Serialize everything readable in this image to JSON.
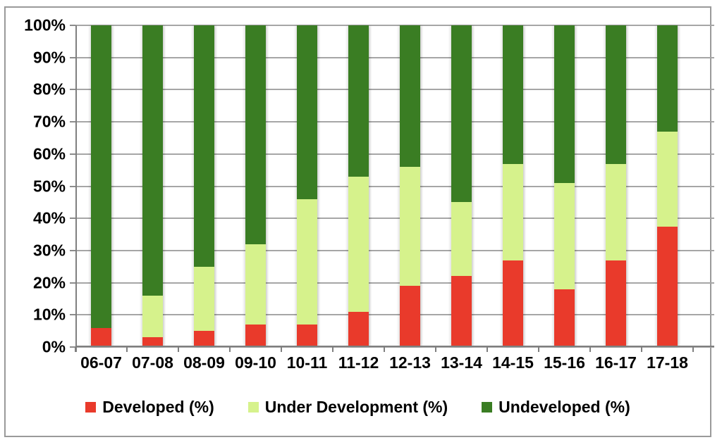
{
  "chart_data": {
    "type": "bar",
    "subtype": "stacked-100-percent",
    "title": "",
    "xlabel": "",
    "ylabel": "",
    "grid": true,
    "legend_position": "bottom",
    "categories": [
      "06-07",
      "07-08",
      "08-09",
      "09-10",
      "10-11",
      "11-12",
      "12-13",
      "13-14",
      "14-15",
      "15-16",
      "16-17",
      "17-18"
    ],
    "series": [
      {
        "name": "Developed (%)",
        "color": "#E93A2B",
        "values": [
          6,
          3,
          5,
          7,
          7,
          11,
          19,
          22,
          27,
          18,
          27,
          37.5
        ]
      },
      {
        "name": "Under Development (%)",
        "color": "#D6F28C",
        "values": [
          0,
          13,
          20,
          25,
          39,
          42,
          37,
          23,
          30,
          33,
          30,
          29.5
        ]
      },
      {
        "name": "Undeveloped (%)",
        "color": "#3A7D23",
        "values": [
          94,
          84,
          75,
          68,
          54,
          47,
          44,
          55,
          43,
          49,
          43,
          33
        ]
      }
    ],
    "y_axis": {
      "min": 0,
      "max": 100,
      "step": 10,
      "tick_format": "{v}%",
      "tick_labels": [
        "0%",
        "10%",
        "20%",
        "30%",
        "40%",
        "50%",
        "60%",
        "70%",
        "80%",
        "90%",
        "100%"
      ]
    }
  },
  "colors": {
    "gridline": "#A6A6A6",
    "axis": "#7F7F7F",
    "frame_border": "#9A9A9A",
    "text": "#000000",
    "background": "#FFFFFF"
  }
}
